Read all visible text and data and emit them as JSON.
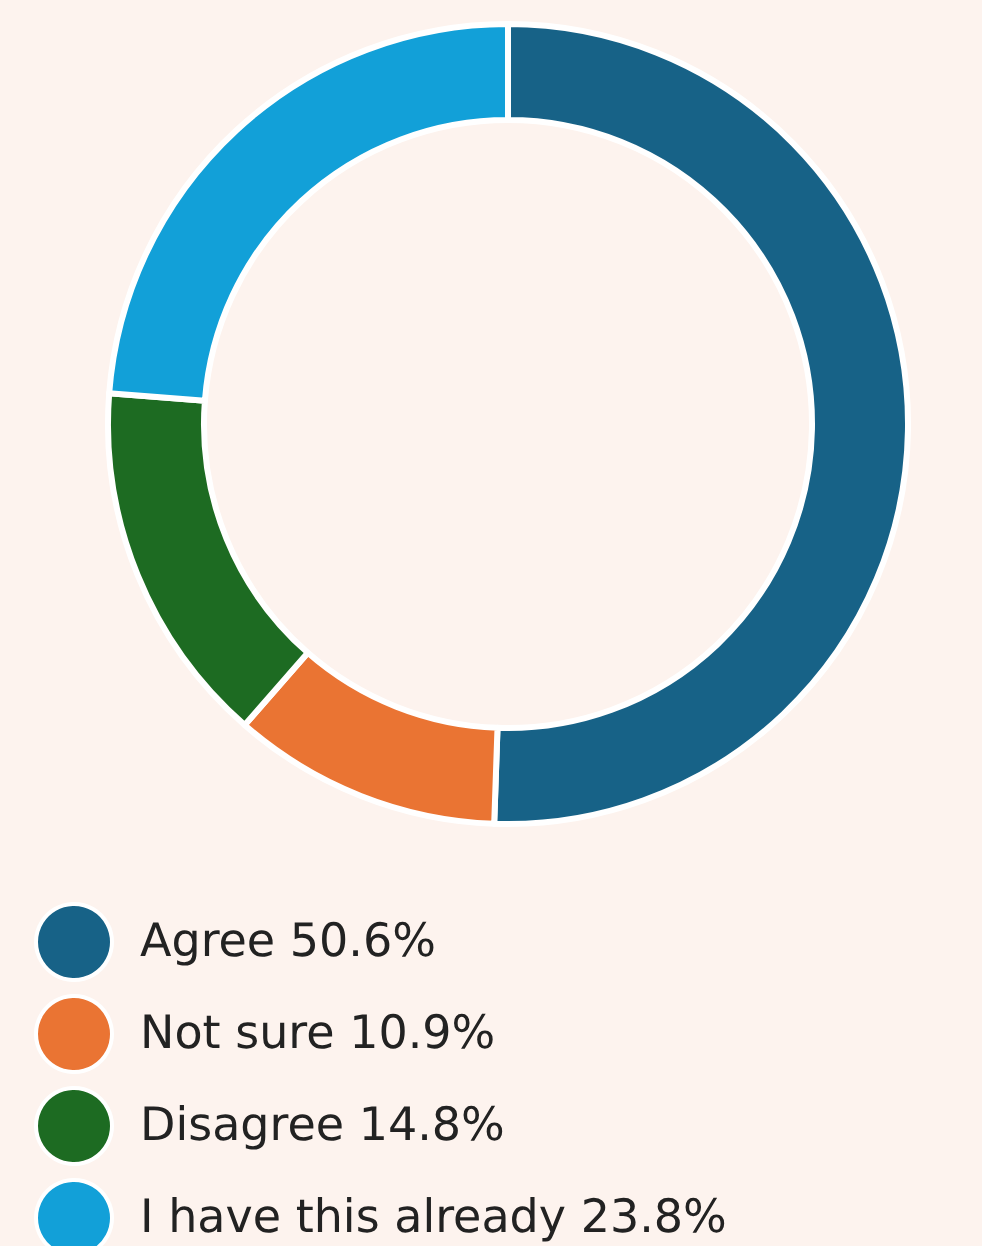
{
  "chart_data": {
    "type": "donut",
    "categories": [
      "Agree 50.6%",
      "Not sure 10.9%",
      "Disagree 14.8%",
      "I have this already 23.8%"
    ],
    "values": [
      50.6,
      10.9,
      14.8,
      23.8
    ],
    "colors": [
      "#176287",
      "#ea7433",
      "#1d6b22",
      "#12a0d8"
    ],
    "legend": "bottom"
  }
}
